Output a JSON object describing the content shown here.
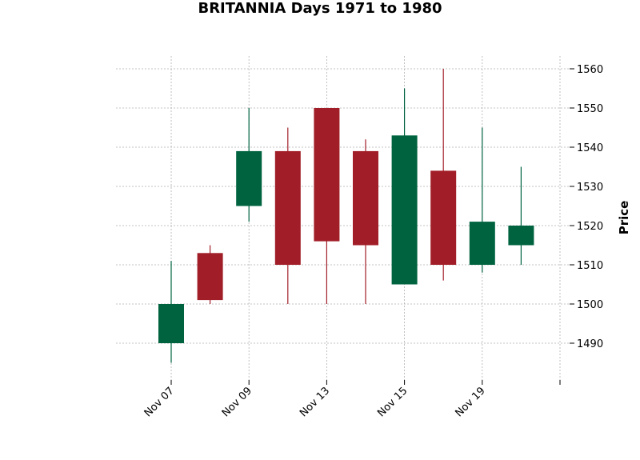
{
  "chart_data": {
    "type": "candlestick",
    "title": "BRITANNIA Days 1971 to 1980",
    "ylabel": "Price",
    "xlabel": "",
    "ylim": [
      1481,
      1563
    ],
    "grid": true,
    "colors": {
      "up": "#006340",
      "down": "#a11e28",
      "grid": "#b0b0b0"
    },
    "yticks": [
      1490,
      1500,
      1510,
      1520,
      1530,
      1540,
      1550,
      1560
    ],
    "xticks": [
      {
        "index": 0,
        "label": "Nov 07"
      },
      {
        "index": 2,
        "label": "Nov 09"
      },
      {
        "index": 4,
        "label": "Nov 13"
      },
      {
        "index": 6,
        "label": "Nov 15"
      },
      {
        "index": 8,
        "label": "Nov 19"
      },
      {
        "index": 10,
        "label": ""
      }
    ],
    "candles": [
      {
        "open": 1490,
        "high": 1511,
        "low": 1485,
        "close": 1500
      },
      {
        "open": 1513,
        "high": 1515,
        "low": 1500,
        "close": 1501
      },
      {
        "open": 1525,
        "high": 1550,
        "low": 1521,
        "close": 1539
      },
      {
        "open": 1539,
        "high": 1545,
        "low": 1500,
        "close": 1510
      },
      {
        "open": 1550,
        "high": 1550,
        "low": 1500,
        "close": 1516
      },
      {
        "open": 1539,
        "high": 1542,
        "low": 1500,
        "close": 1515
      },
      {
        "open": 1505,
        "high": 1555,
        "low": 1505,
        "close": 1543
      },
      {
        "open": 1534,
        "high": 1560,
        "low": 1506,
        "close": 1510
      },
      {
        "open": 1510,
        "high": 1545,
        "low": 1508,
        "close": 1521
      },
      {
        "open": 1515,
        "high": 1535,
        "low": 1510,
        "close": 1520
      }
    ]
  }
}
